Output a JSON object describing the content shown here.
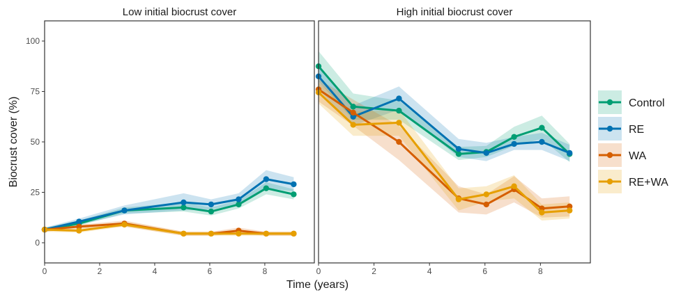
{
  "chart_data": {
    "type": "line",
    "xlabel": "Time (years)",
    "ylabel": "Biocrust cover (%)",
    "xlim": [
      0,
      9.8
    ],
    "ylim": [
      -10,
      110
    ],
    "xticks": [
      0,
      2,
      4,
      6,
      8
    ],
    "yticks": [
      0,
      25,
      50,
      75,
      100
    ],
    "grid": false,
    "legend_position": "right",
    "x": [
      0,
      1.25,
      2.9,
      5.05,
      6.05,
      7.05,
      8.05,
      9.05
    ],
    "panels": [
      {
        "title": "Low initial biocrust cover",
        "series": [
          {
            "name": "Control",
            "color": "#009E73",
            "values": [
              6.5,
              9.5,
              16,
              17.5,
              15.5,
              19,
              27,
              24
            ],
            "lower": [
              5.5,
              8.5,
              14.5,
              15.5,
              13.5,
              17,
              24,
              21.5
            ],
            "upper": [
              7.5,
              11,
              17.5,
              20,
              17.5,
              21,
              30,
              26.5
            ]
          },
          {
            "name": "RE",
            "color": "#0072B2",
            "values": [
              6.5,
              10.5,
              16,
              20,
              19,
              21.5,
              31.5,
              29
            ],
            "lower": [
              5.5,
              9,
              14,
              16,
              16.5,
              19,
              27,
              25.5
            ],
            "upper": [
              7.5,
              12,
              18.5,
              24.5,
              21.5,
              24.5,
              36,
              32.5
            ]
          },
          {
            "name": "WA",
            "color": "#D55E00",
            "values": [
              6.5,
              8,
              9.5,
              4.5,
              4.5,
              6,
              4.5,
              4.5
            ],
            "lower": [
              5.5,
              7,
              8,
              3.5,
              3.5,
              4.5,
              3.5,
              3.5
            ],
            "upper": [
              7.5,
              9,
              11,
              5.5,
              5.5,
              7.5,
              5.5,
              5.5
            ]
          },
          {
            "name": "RE+WA",
            "color": "#E69F00",
            "values": [
              6.5,
              6,
              9,
              4.5,
              4.5,
              4.5,
              4.5,
              4.5
            ],
            "lower": [
              5.5,
              5,
              8,
              3.5,
              3.5,
              3.5,
              3.5,
              3.5
            ],
            "upper": [
              7.5,
              7,
              10.5,
              5.5,
              5.5,
              5.5,
              5.5,
              5.5
            ]
          }
        ]
      },
      {
        "title": "High initial biocrust cover",
        "series": [
          {
            "name": "Control",
            "color": "#009E73",
            "values": [
              87.5,
              67.5,
              65.5,
              44,
              45,
              52.5,
              57,
              44
            ],
            "lower": [
              80,
              61,
              61,
              41,
              42.5,
              48,
              51.5,
              40
            ],
            "upper": [
              95,
              74,
              70.5,
              47.5,
              48,
              57.5,
              63,
              49
            ]
          },
          {
            "name": "RE",
            "color": "#0072B2",
            "values": [
              82.5,
              62.5,
              71.5,
              46.5,
              44.5,
              49,
              50,
              44.5
            ],
            "lower": [
              76,
              58,
              66,
              42.5,
              40.5,
              46,
              46,
              40.5
            ],
            "upper": [
              88,
              68,
              77.5,
              51.5,
              49.5,
              52.5,
              54.5,
              48.5
            ]
          },
          {
            "name": "WA",
            "color": "#D55E00",
            "values": [
              76,
              64.5,
              50,
              22,
              19,
              26.5,
              17,
              18
            ],
            "lower": [
              70,
              58,
              41,
              15,
              14,
              20,
              12.5,
              13
            ],
            "upper": [
              81,
              71,
              58,
              28,
              24,
              33,
              22,
              23
            ]
          },
          {
            "name": "RE+WA",
            "color": "#E69F00",
            "values": [
              74.5,
              58.5,
              59.5,
              21.5,
              24,
              28,
              15,
              16
            ],
            "lower": [
              69,
              53,
              53,
              16,
              20.5,
              22,
              11,
              12
            ],
            "upper": [
              79.5,
              65,
              66,
              27,
              28,
              33.5,
              19,
              20
            ]
          }
        ]
      }
    ]
  }
}
